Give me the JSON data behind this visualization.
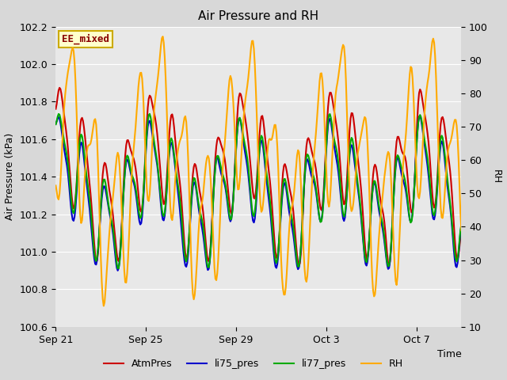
{
  "title": "Air Pressure and RH",
  "xlabel": "Time",
  "ylabel_left": "Air Pressure (kPa)",
  "ylabel_right": "RH",
  "left_ylim": [
    100.6,
    102.2
  ],
  "right_ylim": [
    10,
    100
  ],
  "left_yticks": [
    100.6,
    100.8,
    101.0,
    101.2,
    101.4,
    101.6,
    101.8,
    102.0,
    102.2
  ],
  "right_yticks": [
    10,
    20,
    30,
    40,
    50,
    60,
    70,
    80,
    90,
    100
  ],
  "xtick_labels": [
    "Sep 21",
    "Sep 25",
    "Sep 29",
    "Oct 3",
    "Oct 7"
  ],
  "fig_bg_color": "#d8d8d8",
  "plot_bg_color": "#e8e8e8",
  "label_box_text": "EE_mixed",
  "label_box_color": "#ffffcc",
  "label_box_border": "#ccaa00",
  "lines": {
    "AtmPres": {
      "color": "#cc0000",
      "lw": 1.5
    },
    "li75_pres": {
      "color": "#0000cc",
      "lw": 1.5
    },
    "li77_pres": {
      "color": "#00aa00",
      "lw": 1.5
    },
    "RH": {
      "color": "#ffaa00",
      "lw": 1.5
    }
  }
}
